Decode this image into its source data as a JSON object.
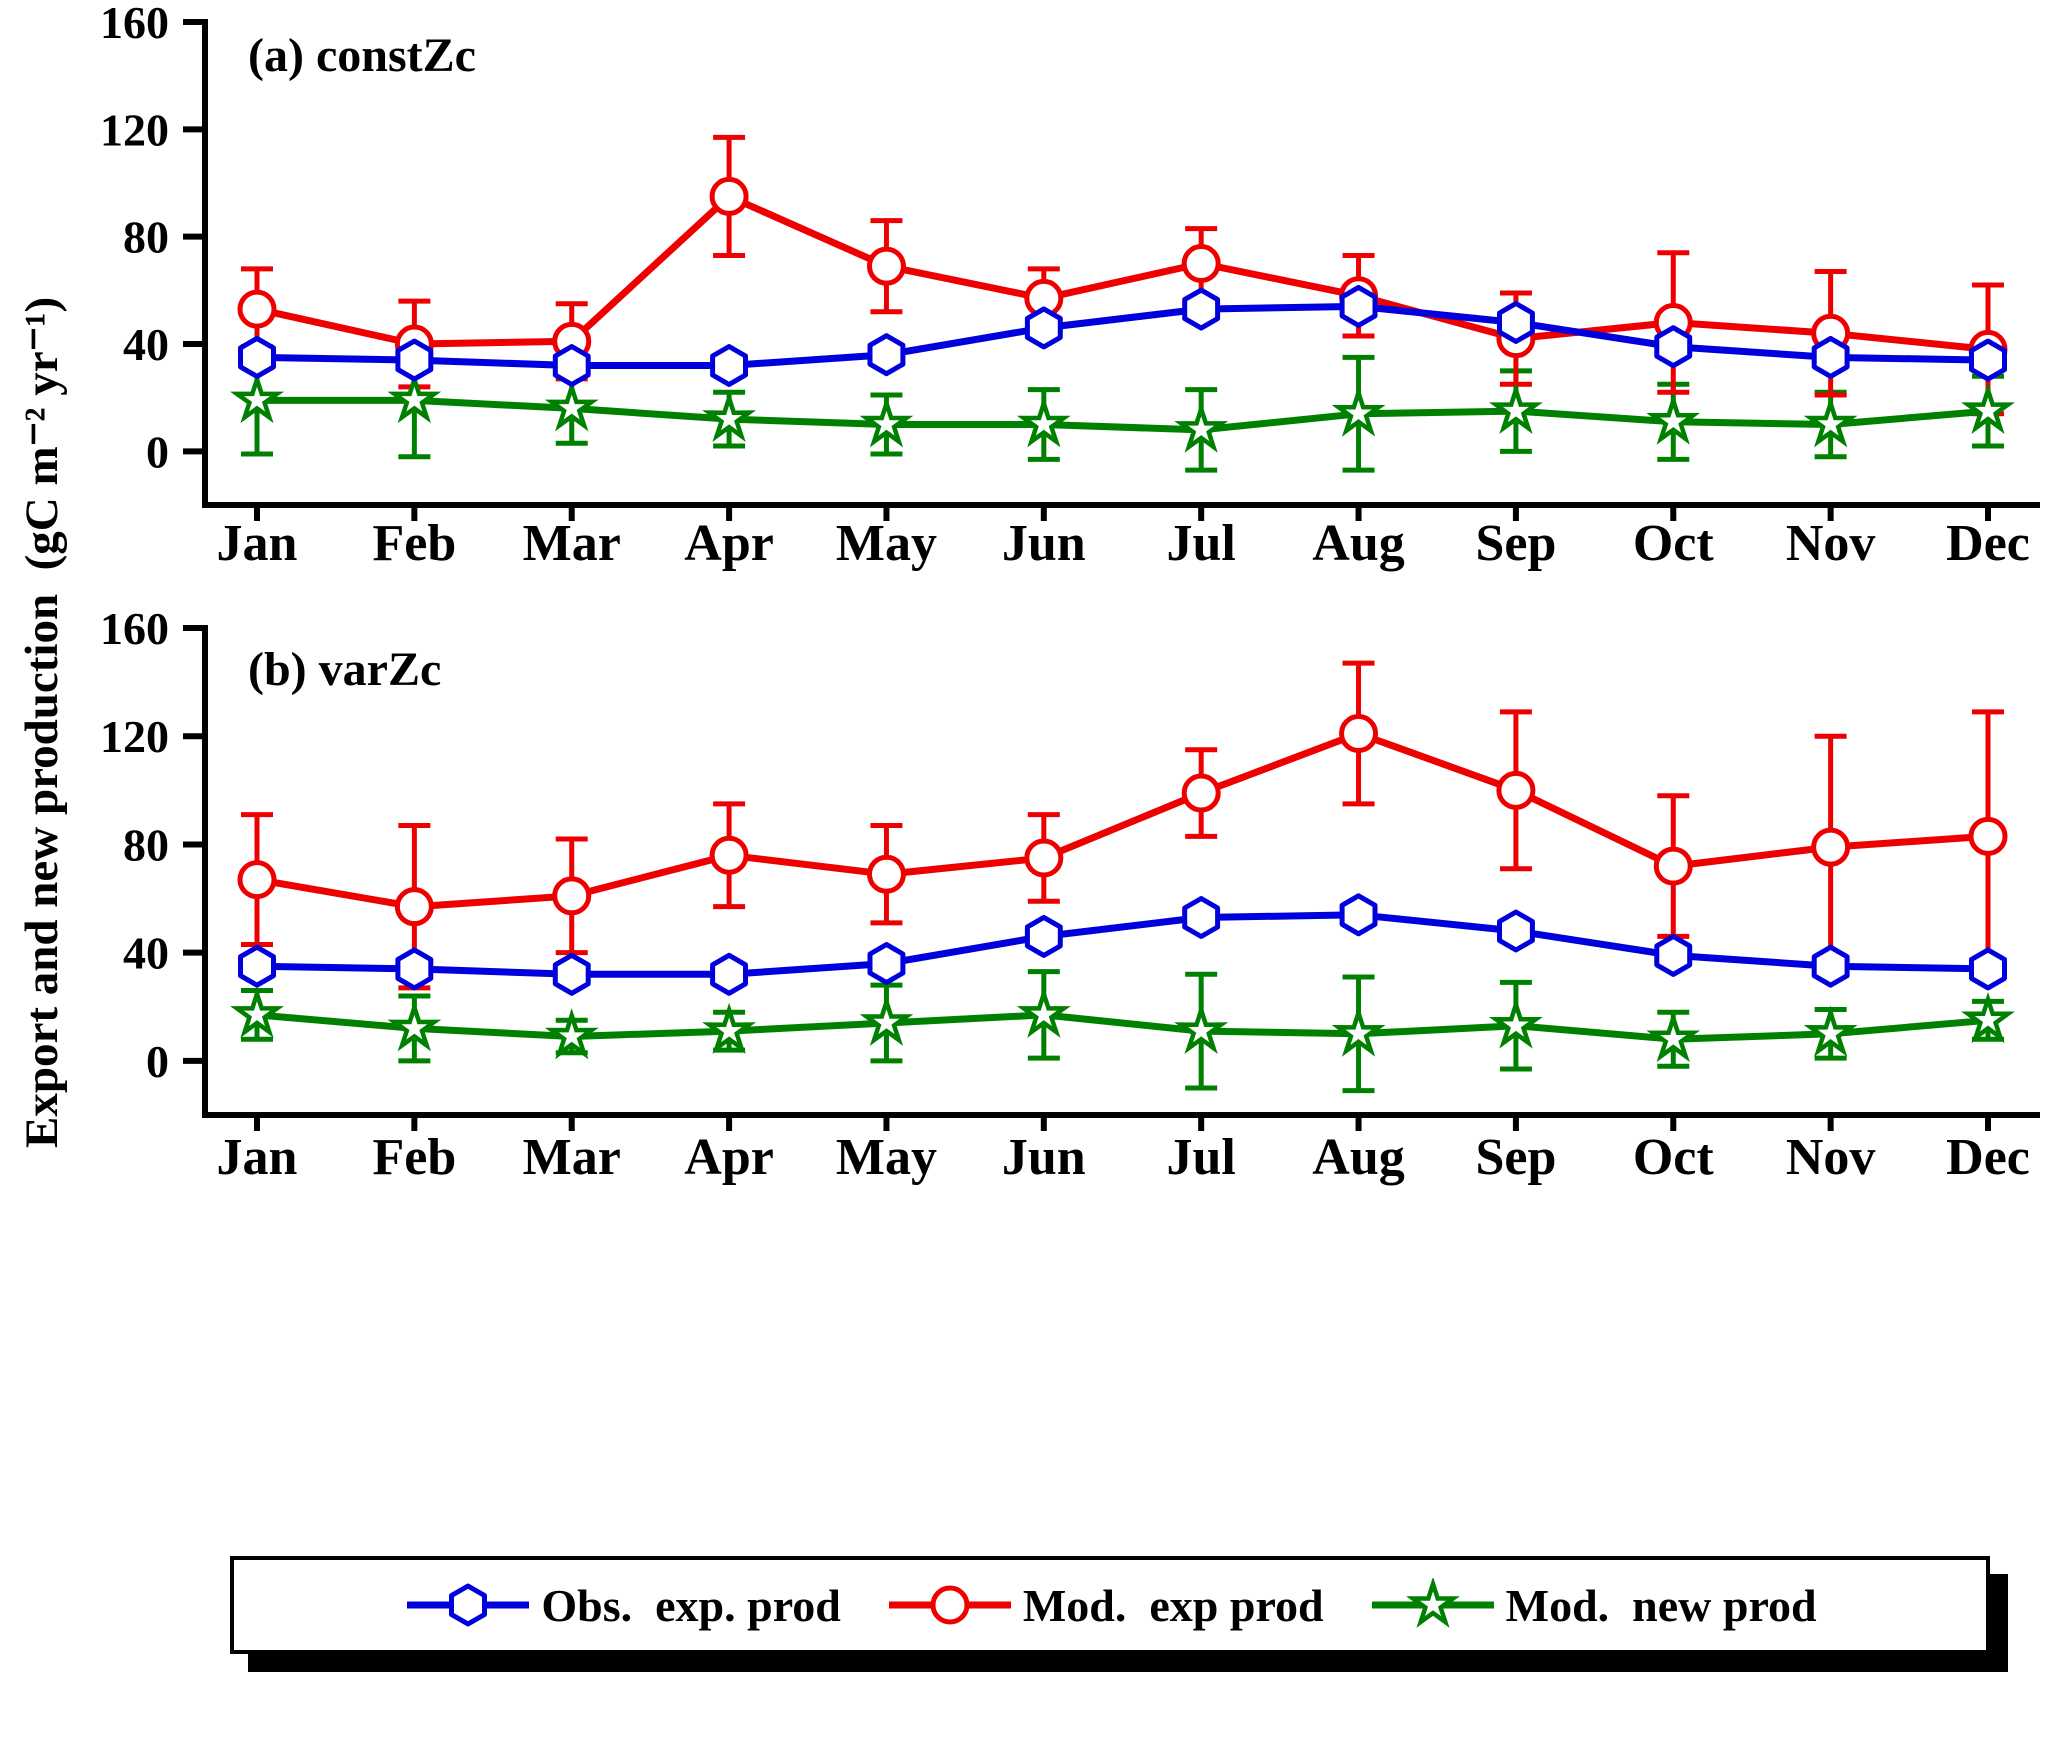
{
  "figure": {
    "y_axis_label": "Export and new production  (gC m⁻² yr⁻¹)"
  },
  "legend": {
    "entries": [
      {
        "label": "Obs.  exp. prod",
        "marker": "hexagon",
        "color": "#0000dd"
      },
      {
        "label": "Mod.  exp prod",
        "marker": "circle",
        "color": "#ee0000"
      },
      {
        "label": "Mod.  new prod",
        "marker": "star",
        "color": "#008000"
      }
    ]
  },
  "chart_data": [
    {
      "type": "line",
      "panel_label": "(a) constZc",
      "categories": [
        "Jan",
        "Feb",
        "Mar",
        "Apr",
        "May",
        "Jun",
        "Jul",
        "Aug",
        "Sep",
        "Oct",
        "Nov",
        "Dec"
      ],
      "ylim": [
        -20,
        160
      ],
      "yticks": [
        0,
        40,
        80,
        120,
        160
      ],
      "ylabel": "Export and new production (gC m⁻² yr⁻¹)",
      "grid": false,
      "legend_position": "bottom",
      "series": [
        {
          "name": "Obs. exp. prod",
          "marker": "hexagon",
          "color": "#0000dd",
          "values": [
            35,
            34,
            32,
            32,
            36,
            46,
            53,
            54,
            48,
            39,
            35,
            34
          ]
        },
        {
          "name": "Mod. exp prod",
          "marker": "circle",
          "color": "#ee0000",
          "values": [
            53,
            40,
            41,
            95,
            69,
            57,
            70,
            58,
            42,
            48,
            44,
            38
          ],
          "errors": [
            15,
            16,
            14,
            22,
            17,
            11,
            13,
            15,
            17,
            26,
            23,
            24
          ]
        },
        {
          "name": "Mod. new prod",
          "marker": "star",
          "color": "#008000",
          "values": [
            19,
            19,
            16,
            12,
            10,
            10,
            8,
            14,
            15,
            11,
            10,
            15
          ],
          "errors": [
            20,
            21,
            13,
            10,
            11,
            13,
            15,
            21,
            15,
            14,
            12,
            13
          ]
        }
      ]
    },
    {
      "type": "line",
      "panel_label": "(b) varZc",
      "categories": [
        "Jan",
        "Feb",
        "Mar",
        "Apr",
        "May",
        "Jun",
        "Jul",
        "Aug",
        "Sep",
        "Oct",
        "Nov",
        "Dec"
      ],
      "ylim": [
        -20,
        160
      ],
      "yticks": [
        0,
        40,
        80,
        120,
        160
      ],
      "ylabel": "Export and new production (gC m⁻² yr⁻¹)",
      "grid": false,
      "legend_position": "bottom",
      "series": [
        {
          "name": "Obs. exp. prod",
          "marker": "hexagon",
          "color": "#0000dd",
          "values": [
            35,
            34,
            32,
            32,
            36,
            46,
            53,
            54,
            48,
            39,
            35,
            34
          ]
        },
        {
          "name": "Mod. exp prod",
          "marker": "circle",
          "color": "#ee0000",
          "values": [
            67,
            57,
            61,
            76,
            69,
            75,
            99,
            121,
            100,
            72,
            79,
            83
          ],
          "errors": [
            24,
            30,
            21,
            19,
            18,
            16,
            16,
            26,
            29,
            26,
            41,
            46
          ]
        },
        {
          "name": "Mod. new prod",
          "marker": "star",
          "color": "#008000",
          "values": [
            17,
            12,
            9,
            11,
            14,
            17,
            11,
            10,
            13,
            8,
            10,
            15
          ],
          "errors": [
            9,
            12,
            6,
            7,
            14,
            16,
            21,
            21,
            16,
            10,
            9,
            7
          ]
        }
      ]
    }
  ]
}
